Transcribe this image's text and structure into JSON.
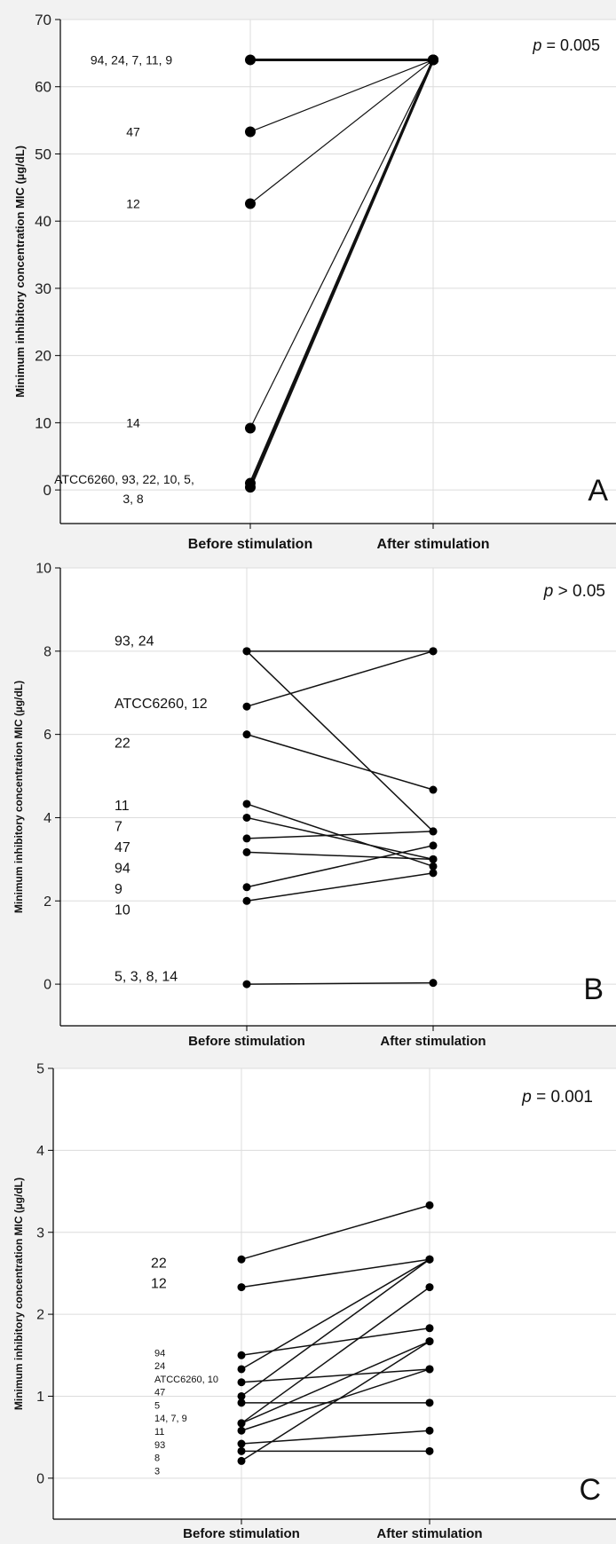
{
  "chart_data": [
    {
      "type": "line",
      "panel_letter": "A",
      "ylabel": "Minimum inhibitory concentration MIC (µg/dL)",
      "xlabel": "",
      "categories": [
        "Before stimulation",
        "After stimulation"
      ],
      "ylim": [
        -5,
        70
      ],
      "yticks": [
        0,
        10,
        20,
        30,
        40,
        50,
        60,
        70
      ],
      "grid": true,
      "p_prefix": "p",
      "p_suffix": " = 0.005",
      "segments": [
        {
          "before": 64,
          "after": 64,
          "heavy": true
        },
        {
          "before": 53.3,
          "after": 64
        },
        {
          "before": 42.6,
          "after": 64
        },
        {
          "before": 9.2,
          "after": 64
        },
        {
          "before": 1,
          "after": 64,
          "heavy": true
        },
        {
          "before": 0.4,
          "after": 64,
          "heavy": true
        }
      ],
      "labels": [
        {
          "text": "94, 24, 7, 11, 9",
          "y": 64
        },
        {
          "text": "47",
          "y": 53.3
        },
        {
          "text": "12",
          "y": 42.6
        },
        {
          "text": "14",
          "y": 10
        },
        {
          "text": "ATCC6260, 93, 22, 10, 5,",
          "y": 1.6
        },
        {
          "text": "3, 8",
          "y": -1.3
        }
      ]
    },
    {
      "type": "line",
      "panel_letter": "B",
      "ylabel": "Minimum inhibitory concentration MIC (µg/dL)",
      "xlabel": "",
      "categories": [
        "Before stimulation",
        "After stimulation"
      ],
      "ylim": [
        -1,
        10
      ],
      "yticks": [
        0,
        2,
        4,
        6,
        8,
        10
      ],
      "grid": true,
      "p_prefix": "p",
      "p_suffix": " > 0.05",
      "segments": [
        {
          "before": 8,
          "after": 8
        },
        {
          "before": 8,
          "after": 3.67
        },
        {
          "before": 6.67,
          "after": 8
        },
        {
          "before": 6,
          "after": 4.67
        },
        {
          "before": 4.33,
          "after": 2.83
        },
        {
          "before": 4,
          "after": 3
        },
        {
          "before": 3.5,
          "after": 3.67
        },
        {
          "before": 3.17,
          "after": 3.0
        },
        {
          "before": 2.33,
          "after": 3.33
        },
        {
          "before": 2,
          "after": 2.67
        },
        {
          "before": 0,
          "after": 0.03
        }
      ],
      "labels": [
        {
          "text": "93, 24",
          "y": 8.25
        },
        {
          "text": "ATCC6260, 12",
          "y": 6.75
        },
        {
          "text": "22",
          "y": 5.8
        },
        {
          "text": "11",
          "y": 4.3
        },
        {
          "text": "7",
          "y": 3.8
        },
        {
          "text": "47",
          "y": 3.3
        },
        {
          "text": "94",
          "y": 2.8
        },
        {
          "text": "9",
          "y": 2.3
        },
        {
          "text": "10",
          "y": 1.8
        },
        {
          "text": "5, 3, 8, 14",
          "y": 0.2
        }
      ]
    },
    {
      "type": "line",
      "panel_letter": "C",
      "ylabel": "Minimum inhibitory concentration MIC (µg/dL)",
      "xlabel": "",
      "categories": [
        "Before stimulation",
        "After stimulation"
      ],
      "ylim": [
        -0.5,
        5
      ],
      "yticks": [
        0,
        1,
        2,
        3,
        4,
        5
      ],
      "grid": true,
      "p_prefix": "p",
      "p_suffix": " = 0.001",
      "segments": [
        {
          "before": 2.67,
          "after": 3.33
        },
        {
          "before": 2.33,
          "after": 2.67
        },
        {
          "before": 1.5,
          "after": 1.83
        },
        {
          "before": 1.33,
          "after": 2.67
        },
        {
          "before": 1.17,
          "after": 1.33
        },
        {
          "before": 1.0,
          "after": 2.67
        },
        {
          "before": 0.92,
          "after": 0.92
        },
        {
          "before": 0.67,
          "after": 2.33
        },
        {
          "before": 0.67,
          "after": 1.67
        },
        {
          "before": 0.58,
          "after": 1.33
        },
        {
          "before": 0.42,
          "after": 0.58
        },
        {
          "before": 0.33,
          "after": 0.33
        },
        {
          "before": 0.21,
          "after": 1.67
        }
      ],
      "labels": [
        {
          "text": "22",
          "y": 2.63,
          "small": false
        },
        {
          "text": "12",
          "y": 2.38,
          "small": false
        },
        {
          "text": "94",
          "y": 1.53,
          "small": true
        },
        {
          "text": "24",
          "y": 1.37,
          "small": true
        },
        {
          "text": "ATCC6260, 10",
          "y": 1.21,
          "small": true
        },
        {
          "text": "47",
          "y": 1.05,
          "small": true
        },
        {
          "text": "5",
          "y": 0.89,
          "small": true
        },
        {
          "text": "14, 7, 9",
          "y": 0.73,
          "small": true
        },
        {
          "text": "11",
          "y": 0.57,
          "small": true
        },
        {
          "text": "93",
          "y": 0.41,
          "small": true
        },
        {
          "text": "8",
          "y": 0.25,
          "small": true
        },
        {
          "text": "3",
          "y": 0.09,
          "small": true
        }
      ]
    }
  ]
}
